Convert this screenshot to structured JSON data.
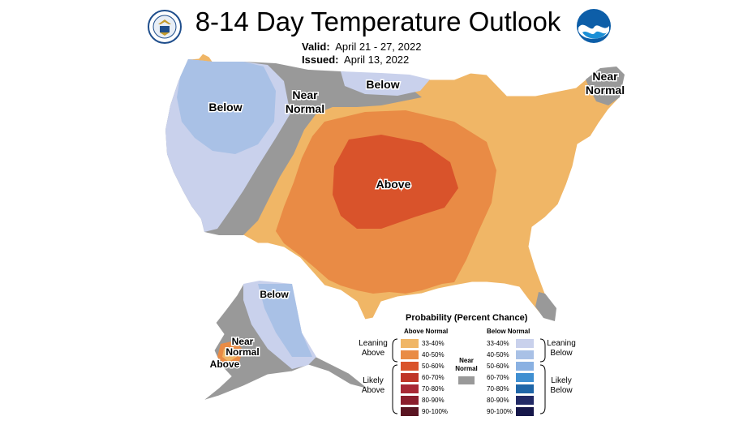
{
  "title": "8-14 Day Temperature Outlook",
  "valid_label": "Valid:",
  "valid_value": "April 21 - 27, 2022",
  "issued_label": "Issued:",
  "issued_value": "April 13, 2022",
  "logos": {
    "left": "commerce-seal-icon",
    "right": "noaa-logo-icon"
  },
  "colors": {
    "above_33_40": "#f0b666",
    "above_40_50": "#e98b45",
    "above_50_60": "#d9532b",
    "above_60_70": "#bf3528",
    "above_70_80": "#a82734",
    "above_80_90": "#8b1d2c",
    "above_90_100": "#5a1522",
    "near_normal": "#999999",
    "below_33_40": "#c9d1ec",
    "below_40_50": "#a9c1e6",
    "below_50_60": "#8ab1e2",
    "below_60_70": "#3f8fd1",
    "below_70_80": "#1f66a8",
    "below_80_90": "#222a66",
    "below_90_100": "#16174a"
  },
  "map_labels": {
    "below_west": "Below",
    "near_normal_west_1": "Near",
    "near_normal_west_2": "Normal",
    "below_north": "Below",
    "near_normal_ne_1": "Near",
    "near_normal_ne_2": "Normal",
    "above_center": "Above",
    "below_alaska": "Below",
    "near_normal_ak_1": "Near",
    "near_normal_ak_2": "Normal",
    "above_alaska": "Above"
  },
  "legend": {
    "title": "Probability (Percent Chance)",
    "above_header": "Above Normal",
    "below_header": "Below Normal",
    "near_1": "Near",
    "near_2": "Normal",
    "leaning_above_1": "Leaning",
    "leaning_above_2": "Above",
    "likely_above_1": "Likely",
    "likely_above_2": "Above",
    "leaning_below_1": "Leaning",
    "leaning_below_2": "Below",
    "likely_below_1": "Likely",
    "likely_below_2": "Below",
    "ranges": [
      "33-40%",
      "40-50%",
      "50-60%",
      "60-70%",
      "70-80%",
      "80-90%",
      "90-100%"
    ]
  }
}
